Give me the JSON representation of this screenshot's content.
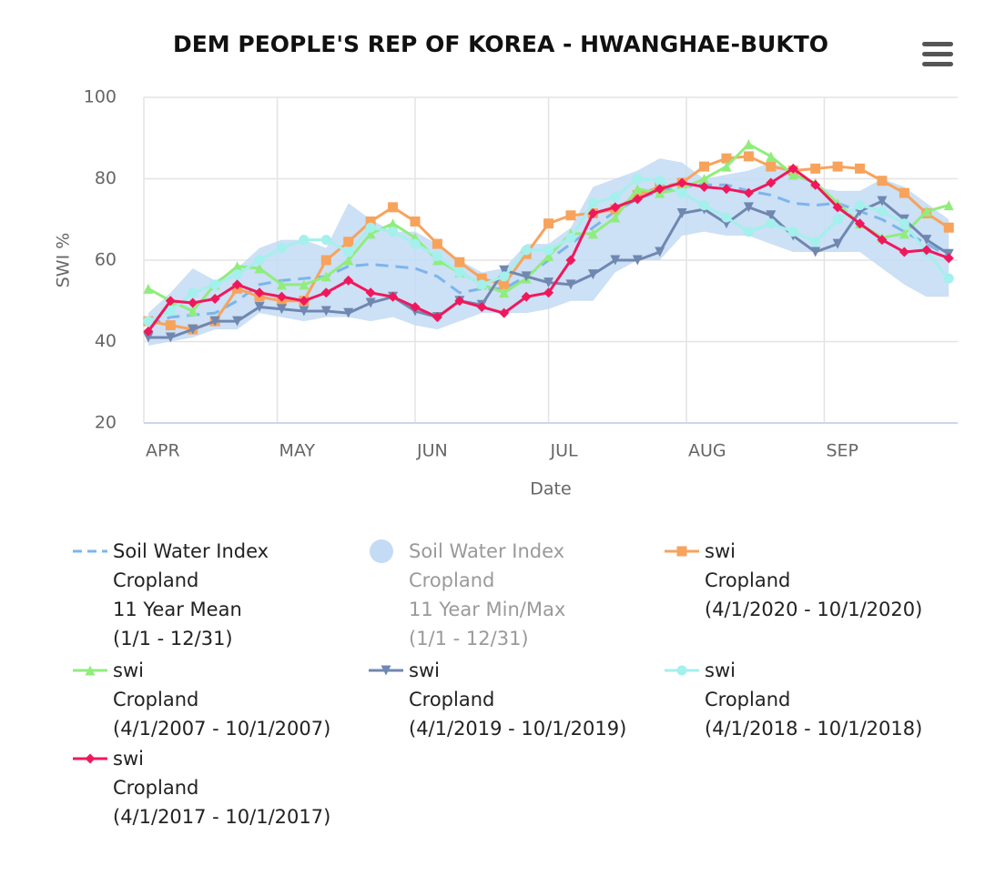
{
  "chart_data": {
    "type": "line",
    "title": "DEM PEOPLE'S REP OF KOREA - HWANGHAE-BUKTO",
    "x_label": "Date",
    "y_label": "SWI %",
    "x": [
      1,
      6,
      11,
      16,
      21,
      26,
      31,
      36,
      41,
      46,
      51,
      56,
      61,
      66,
      71,
      76,
      81,
      86,
      91,
      96,
      101,
      106,
      111,
      116,
      121,
      126,
      131,
      136,
      141,
      146,
      151,
      156,
      161,
      166,
      171,
      176,
      181
    ],
    "xlim": [
      0,
      183
    ],
    "xticks": [
      {
        "value": 0,
        "label": "APR"
      },
      {
        "value": 30,
        "label": "MAY"
      },
      {
        "value": 61,
        "label": "JUN"
      },
      {
        "value": 91,
        "label": "JUL"
      },
      {
        "value": 122,
        "label": "AUG"
      },
      {
        "value": 153,
        "label": "SEP"
      }
    ],
    "ylim": [
      20,
      100
    ],
    "yticks": [
      20,
      40,
      60,
      80,
      100
    ],
    "grid": true,
    "series": [
      {
        "name": "Soil Water Index\nCropland\n11 Year Mean\n(1/1 - 12/31)",
        "color": "#7cb5ec",
        "dash": true,
        "values": [
          44,
          46,
          46.5,
          47,
          50,
          54,
          55,
          55.5,
          56,
          58.5,
          59,
          58.5,
          58,
          56,
          52,
          53,
          53,
          56,
          60,
          64,
          68,
          72,
          75,
          77,
          78,
          78.5,
          78.5,
          77,
          76,
          74,
          73.5,
          74,
          72,
          70,
          67,
          64,
          61
        ]
      },
      {
        "name": "Soil Water Index\nCropland\n11 Year Min/Max\n(1/1 - 12/31)",
        "color": "#c3dbf5",
        "band": true,
        "low": [
          39,
          40,
          41,
          43,
          43,
          47,
          46,
          45,
          46,
          46,
          45,
          46,
          44,
          43,
          45,
          47,
          47,
          47,
          48,
          50,
          50,
          57,
          60,
          60,
          66,
          67,
          66,
          66,
          64,
          62,
          62,
          62,
          62,
          58,
          54,
          51,
          51
        ],
        "high": [
          47,
          52,
          58,
          55,
          58,
          63,
          65,
          65,
          63,
          74,
          70,
          67,
          67,
          64,
          60,
          57,
          58,
          64,
          64,
          68,
          78,
          80,
          82,
          85,
          84,
          80,
          81,
          82,
          84,
          82,
          78,
          77,
          77,
          80,
          78,
          74,
          70
        ]
      },
      {
        "name": "swi\nCropland\n(4/1/2020 - 10/1/2020)",
        "color": "#f7a35c",
        "marker": "square",
        "values": [
          45,
          44,
          43,
          45,
          53,
          51,
          50,
          50,
          60,
          64.5,
          69.5,
          73,
          69.5,
          64,
          59.5,
          55.5,
          54,
          61.5,
          69,
          71,
          71.5,
          72.5,
          76,
          78,
          79,
          83,
          85,
          85.5,
          83,
          82,
          82.5,
          83,
          82.5,
          79.5,
          76.5,
          71.5,
          68
        ]
      },
      {
        "name": "swi\nCropland\n(4/1/2007 - 10/1/2007)",
        "color": "#90ed7d",
        "marker": "triangle",
        "values": [
          53,
          50,
          47.5,
          54,
          58.5,
          58,
          54,
          54,
          56,
          60,
          66.5,
          69,
          65.5,
          60,
          57,
          54,
          52,
          55.5,
          61,
          66.5,
          66.5,
          70.5,
          77.5,
          76.5,
          77.5,
          80,
          83,
          88.5,
          85.5,
          81,
          79,
          74,
          69,
          65.5,
          66.5,
          72,
          73.5
        ]
      },
      {
        "name": "swi\nCropland\n(4/1/2019 - 10/1/2019)",
        "color": "#7088b0",
        "marker": "triangle-down",
        "values": [
          41,
          41,
          43,
          45,
          45,
          48.5,
          48,
          47.5,
          47.5,
          47,
          49.5,
          51,
          47.5,
          46,
          50,
          49,
          57.5,
          56,
          54.5,
          54,
          56.5,
          60,
          60,
          62,
          71.5,
          72.5,
          69,
          73,
          71,
          66,
          62,
          64,
          72,
          74.5,
          70,
          65,
          61.5
        ]
      },
      {
        "name": "swi\nCropland\n(4/1/2018 - 10/1/2018)",
        "color": "#a3f0ec",
        "marker": "circle",
        "values": [
          45,
          47.5,
          52,
          54,
          56.5,
          60,
          63,
          65,
          65,
          62,
          68,
          67,
          64,
          61,
          57,
          54,
          56,
          62.5,
          62.5,
          65.5,
          74,
          75.5,
          80,
          79.5,
          76.5,
          73.5,
          70.5,
          67,
          69,
          67,
          64.5,
          70,
          73.5,
          72,
          69,
          62,
          55.5
        ]
      },
      {
        "name": "swi\nCropland\n(4/1/2017 - 10/1/2017)",
        "color": "#f0185c",
        "marker": "diamond",
        "values": [
          42.5,
          50,
          49.5,
          50.5,
          54,
          52,
          51,
          50,
          52,
          55,
          52,
          51,
          48.5,
          46,
          50,
          48.5,
          47,
          51,
          52,
          60,
          71.5,
          73,
          75,
          77.5,
          79,
          78,
          77.5,
          76.5,
          79,
          82.5,
          78.5,
          73,
          69,
          65,
          62,
          62.5,
          60.5
        ]
      }
    ]
  }
}
